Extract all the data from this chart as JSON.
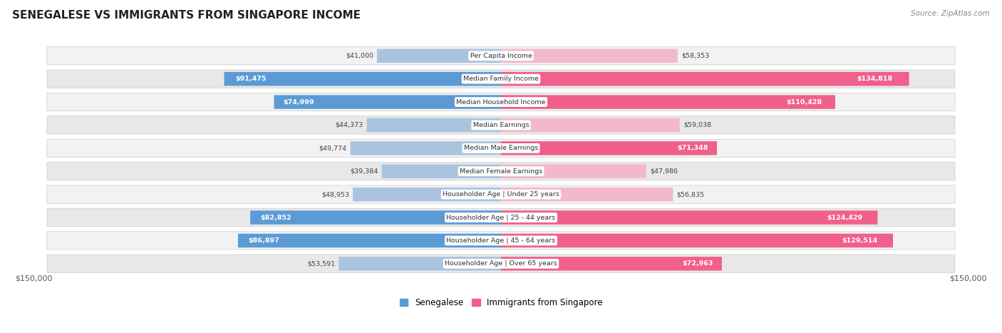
{
  "title": "SENEGALESE VS IMMIGRANTS FROM SINGAPORE INCOME",
  "source": "Source: ZipAtlas.com",
  "categories": [
    "Per Capita Income",
    "Median Family Income",
    "Median Household Income",
    "Median Earnings",
    "Median Male Earnings",
    "Median Female Earnings",
    "Householder Age | Under 25 years",
    "Householder Age | 25 - 44 years",
    "Householder Age | 45 - 64 years",
    "Householder Age | Over 65 years"
  ],
  "senegalese_values": [
    41000,
    91475,
    74999,
    44373,
    49774,
    39384,
    48953,
    82852,
    86897,
    53591
  ],
  "singapore_values": [
    58353,
    134818,
    110428,
    59038,
    71348,
    47986,
    56835,
    124429,
    129514,
    72963
  ],
  "senegalese_labels": [
    "$41,000",
    "$91,475",
    "$74,999",
    "$44,373",
    "$49,774",
    "$39,384",
    "$48,953",
    "$82,852",
    "$86,897",
    "$53,591"
  ],
  "singapore_labels": [
    "$58,353",
    "$134,818",
    "$110,428",
    "$59,038",
    "$71,348",
    "$47,986",
    "$56,835",
    "$124,429",
    "$129,514",
    "$72,963"
  ],
  "max_value": 150000,
  "senegalese_bar_color_light": "#aac4e0",
  "senegalese_bar_color_solid": "#5b9bd5",
  "singapore_bar_color_light": "#f4b8cc",
  "singapore_bar_color_solid": "#f0608a",
  "row_bg_even": "#f2f2f2",
  "row_bg_odd": "#e8e8e8",
  "legend_senegalese": "Senegalese",
  "legend_singapore": "Immigrants from Singapore",
  "bottom_left_label": "$150,000",
  "bottom_right_label": "$150,000",
  "sn_white_label_threshold": 60000,
  "sg_white_label_threshold": 60000
}
